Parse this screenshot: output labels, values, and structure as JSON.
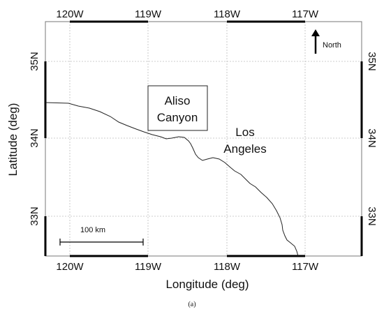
{
  "map": {
    "x_ticks": [
      "120W",
      "119W",
      "118W",
      "117W"
    ],
    "y_ticks": [
      "35N",
      "34N",
      "33N"
    ],
    "xlabel": "Longitude (deg)",
    "ylabel": "Latitude (deg)",
    "north_label": "North",
    "scale_bar_label": "100 km",
    "places": {
      "aliso_line1": "Aliso",
      "aliso_line2": "Canyon",
      "la_line1": "Los",
      "la_line2": "Angeles"
    },
    "caption": "(a)"
  }
}
